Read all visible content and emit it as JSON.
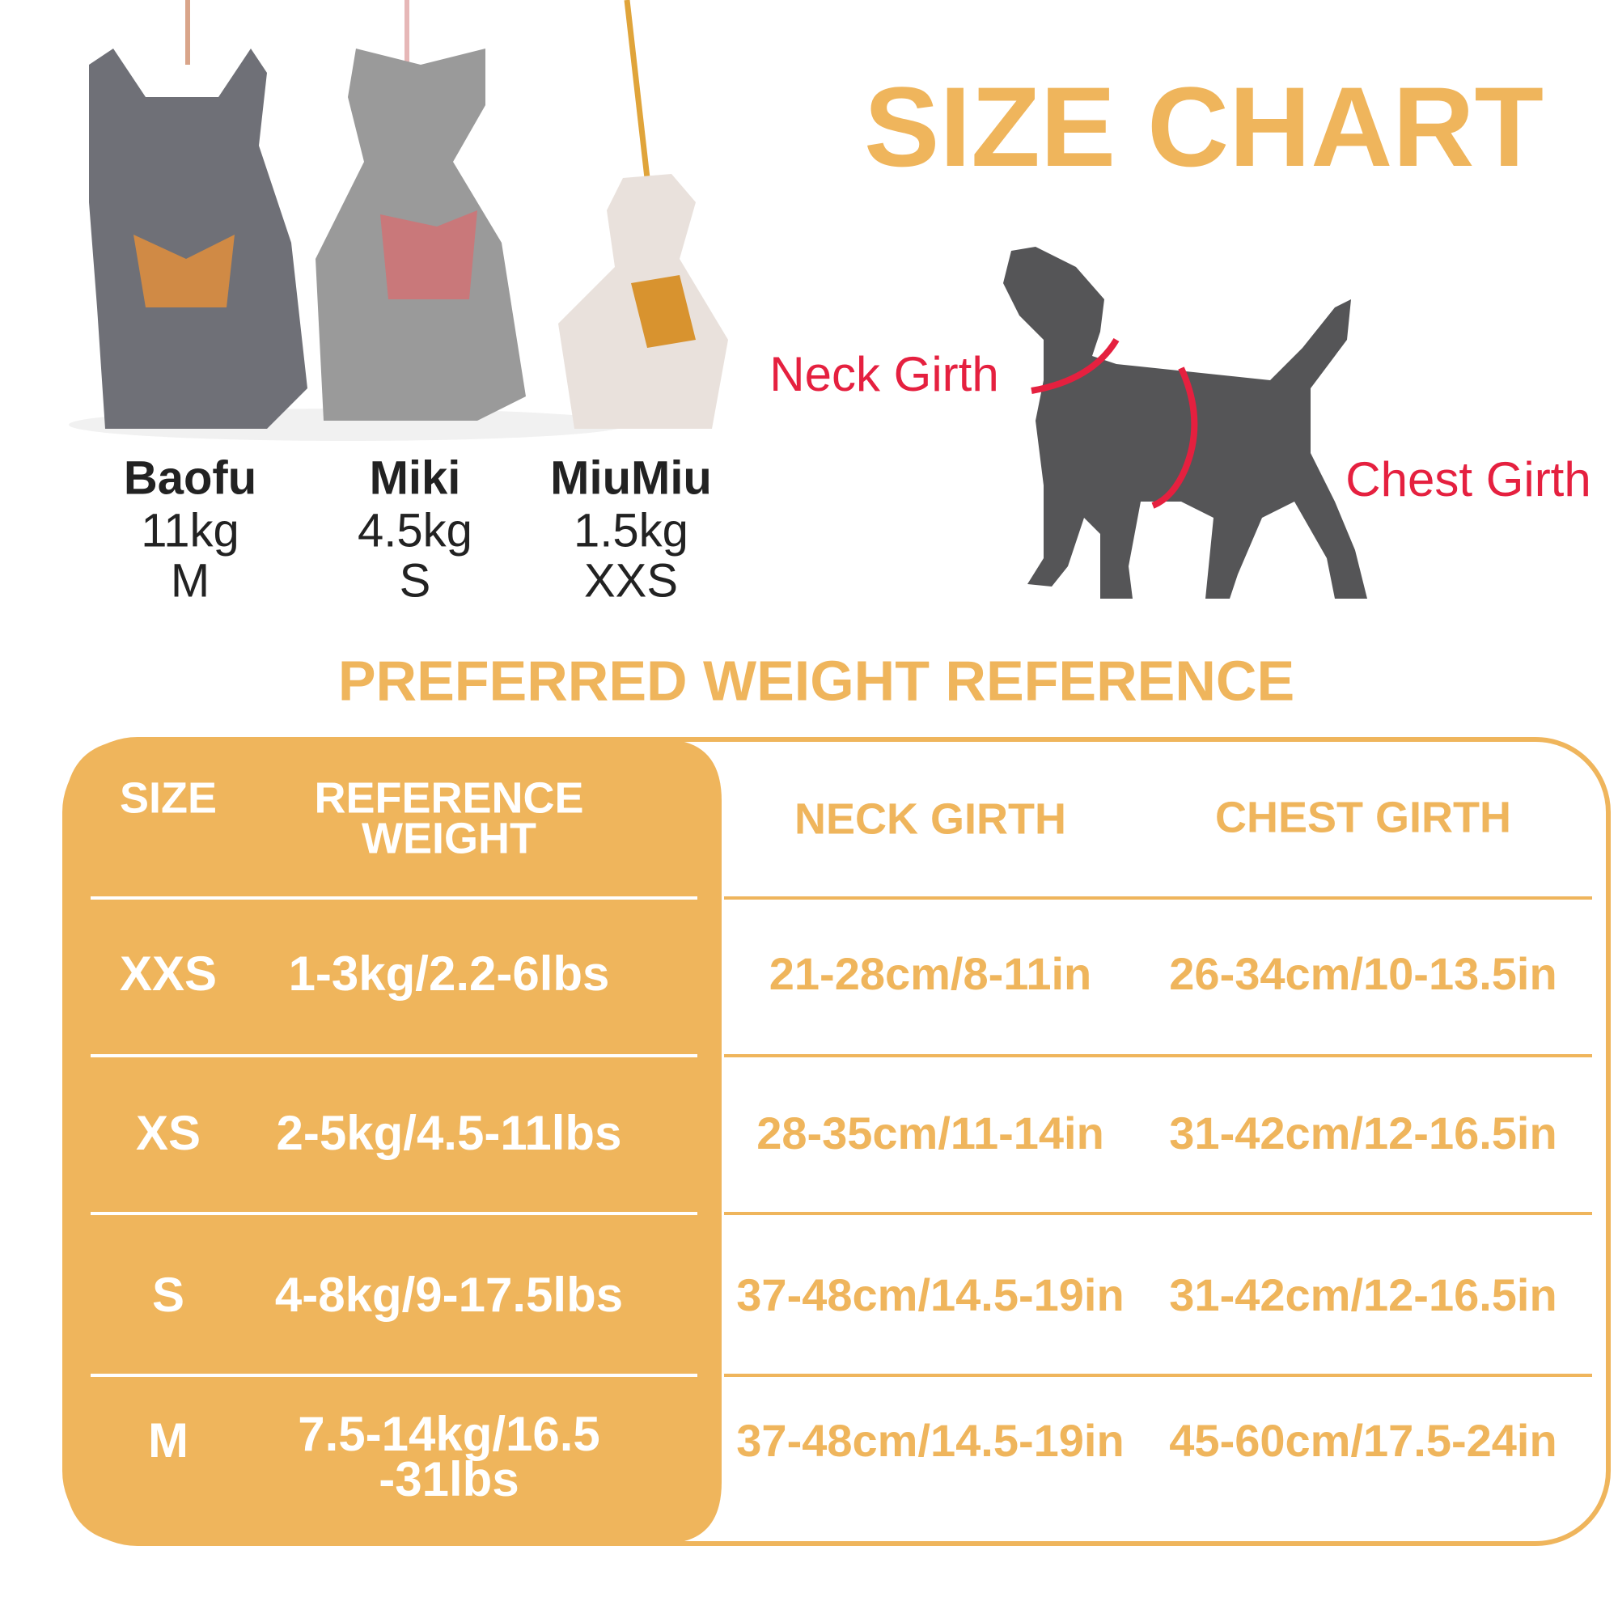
{
  "title": "SIZE CHART",
  "dogs": [
    {
      "name": "Baofu",
      "weight": "11kg",
      "size": "M"
    },
    {
      "name": "Miki",
      "weight": "4.5kg",
      "size": "S"
    },
    {
      "name": "MiuMiu",
      "weight": "1.5kg",
      "size": "XXS"
    }
  ],
  "diagram": {
    "neck_label": "Neck Girth",
    "chest_label": "Chest Girth"
  },
  "subtitle": "PREFERRED WEIGHT REFERENCE",
  "table": {
    "headers": {
      "size": "SIZE",
      "weight": [
        "REFERENCE",
        "WEIGHT"
      ],
      "neck": "NECK GIRTH",
      "chest": "CHEST GIRTH"
    },
    "rows": [
      {
        "size": "XXS",
        "weight": [
          "1-3kg/2.2-6lbs"
        ],
        "neck": "21-28cm/8-11in",
        "chest": "26-34cm/10-13.5in"
      },
      {
        "size": "XS",
        "weight": [
          "2-5kg/4.5-11lbs"
        ],
        "neck": "28-35cm/11-14in",
        "chest": "31-42cm/12-16.5in"
      },
      {
        "size": "S",
        "weight": [
          "4-8kg/9-17.5lbs"
        ],
        "neck": "37-48cm/14.5-19in",
        "chest": "31-42cm/12-16.5in"
      },
      {
        "size": "M",
        "weight": [
          "7.5-14kg/16.5",
          "-31lbs"
        ],
        "neck": "37-48cm/14.5-19in",
        "chest": "45-60cm/17.5-24in"
      }
    ]
  }
}
